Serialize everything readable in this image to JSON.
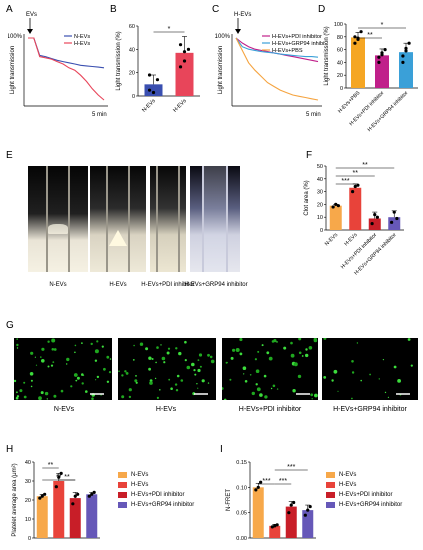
{
  "panel_letters": [
    "A",
    "B",
    "C",
    "D",
    "E",
    "F",
    "G",
    "H",
    "I"
  ],
  "colors": {
    "nevs": "#3a4fb0",
    "hevs": "#e8455a",
    "pdi": "#c0208a",
    "grp94": "#3aa0d8",
    "pbs": "#f5a440",
    "orange": "#f7a84a",
    "red": "#e8433a",
    "darkred": "#c81e28",
    "purple": "#6658b8",
    "gold": "#f5a623"
  },
  "chart_data": [
    {
      "id": "A",
      "type": "line",
      "marker_label": "EVs",
      "y_top_label": "100%",
      "ylabel": "Light transmission",
      "xlabel": "5 min",
      "series": [
        {
          "name": "N-EVs",
          "values": [
            100,
            100,
            72,
            70,
            67,
            64,
            62,
            60,
            58,
            56,
            55,
            54,
            53,
            52
          ]
        },
        {
          "name": "H-EVs",
          "values": [
            100,
            100,
            70,
            68,
            66,
            62,
            58,
            52,
            48,
            40,
            30,
            18,
            8,
            0
          ]
        }
      ]
    },
    {
      "id": "B",
      "type": "bar",
      "categories": [
        "N-EVs",
        "H-EVs"
      ],
      "values": [
        10,
        37
      ],
      "errors": [
        8,
        14
      ],
      "points": [
        [
          5,
          3,
          14,
          18
        ],
        [
          25,
          30,
          40,
          44,
          38
        ]
      ],
      "ylabel": "Light transmission (%)",
      "yticks": [
        "0",
        "20",
        "40",
        "60"
      ],
      "ylim": [
        0,
        60
      ],
      "significance": [
        "*"
      ]
    },
    {
      "id": "C",
      "type": "line",
      "marker_label": "H-EVs",
      "y_top_label": "100%",
      "ylabel": "Light transmission",
      "xlabel": "5 min",
      "series": [
        {
          "name": "H-EVs+PDI inhibitor",
          "values": [
            100,
            92,
            86,
            82,
            80,
            78,
            76,
            74,
            72,
            70,
            68,
            66,
            64,
            62
          ]
        },
        {
          "name": "H-EVs+GRP94 inhibitor",
          "values": [
            100,
            86,
            82,
            80,
            78,
            77,
            76,
            74,
            73,
            72,
            71,
            70,
            70,
            69
          ]
        },
        {
          "name": "H-EVs+PBS",
          "values": [
            100,
            80,
            60,
            48,
            38,
            28,
            22,
            16,
            12,
            8,
            6,
            4,
            2,
            0
          ]
        }
      ]
    },
    {
      "id": "D",
      "type": "bar",
      "categories": [
        "H-EVs+PBS",
        "H-EVs+PDI inhibitor",
        "H-EVs+GRP94 inhibitor"
      ],
      "values": [
        79,
        51,
        56
      ],
      "errors": [
        8,
        10,
        14
      ],
      "points": [
        [
          70,
          78,
          88,
          80,
          76
        ],
        [
          40,
          55,
          60,
          48,
          52
        ],
        [
          40,
          62,
          70,
          50,
          58
        ]
      ],
      "ylabel": "Light transmission (%)",
      "yticks": [
        "0",
        "20",
        "40",
        "60",
        "80",
        "100"
      ],
      "ylim": [
        0,
        100
      ],
      "significance": [
        "**",
        "*"
      ]
    },
    {
      "id": "F",
      "type": "bar",
      "categories": [
        "N-EVs",
        "H-EVs",
        "H-EVs+PDI inhibitor",
        "H-EVs+GRP94 inhibitor"
      ],
      "values": [
        19,
        33,
        9,
        10
      ],
      "errors": [
        1,
        3,
        5,
        5
      ],
      "points": [
        [
          18,
          20,
          19
        ],
        [
          30,
          34,
          35
        ],
        [
          5,
          12,
          10
        ],
        [
          6,
          14,
          9
        ]
      ],
      "ylabel": "Clot area (%)",
      "yticks": [
        "0",
        "10",
        "20",
        "30",
        "40",
        "50"
      ],
      "ylim": [
        0,
        50
      ],
      "significance": [
        "***",
        "**",
        "**"
      ]
    },
    {
      "id": "H",
      "type": "bar",
      "categories": [
        "N-EVs",
        "H-EVs",
        "H-EVs+PDI inhibitor",
        "H-EVs+GRP94 inhibitor"
      ],
      "values": [
        22,
        30,
        21,
        23
      ],
      "errors": [
        1,
        4,
        3,
        1
      ],
      "points": [
        [
          21,
          22,
          23
        ],
        [
          27,
          32,
          34
        ],
        [
          18,
          22,
          23
        ],
        [
          22,
          23,
          24
        ]
      ],
      "ylabel": "Platelet average area (μm²)",
      "yticks": [
        "0",
        "10",
        "20",
        "30",
        "40"
      ],
      "ylim": [
        0,
        40
      ],
      "significance": [
        "**",
        "**",
        "**"
      ]
    },
    {
      "id": "I",
      "type": "bar",
      "categories": [
        "N-EVs",
        "H-EVs",
        "H-EVs+PDI inhibitor",
        "H-EVs+GRP94 inhibitor"
      ],
      "values": [
        0.1,
        0.024,
        0.062,
        0.055
      ],
      "errors": [
        0.008,
        0.003,
        0.01,
        0.01
      ],
      "points": [
        [
          0.095,
          0.1,
          0.11
        ],
        [
          0.022,
          0.024,
          0.026
        ],
        [
          0.05,
          0.065,
          0.07
        ],
        [
          0.045,
          0.055,
          0.062
        ]
      ],
      "ylabel": "N-FRET",
      "yticks": [
        "0.00",
        "0.05",
        "0.10",
        "0.15"
      ],
      "ylim": [
        0,
        0.15
      ],
      "significance": [
        "***",
        "***",
        "***"
      ]
    }
  ],
  "panel_e": {
    "captions": [
      "N-EVs",
      "H-EVs",
      "H-EVs+PDI inhibitor",
      "H-EVs+GRP94 inhibitor"
    ]
  },
  "panel_g": {
    "captions": [
      "N-EVs",
      "H-EVs",
      "H-EVs+PDI inhibitor",
      "H-EVs+GRP94 inhibitor"
    ]
  },
  "legend_h": [
    "N-EVs",
    "H-EVs",
    "H-EVs+PDI inhibitor",
    "H-EVs+GRP94 inhibitor"
  ],
  "legend_i": [
    "N-EVs",
    "H-EVs",
    "H-EVs+PDI inhibitor",
    "H-EVs+GRP94 inhibitor"
  ]
}
